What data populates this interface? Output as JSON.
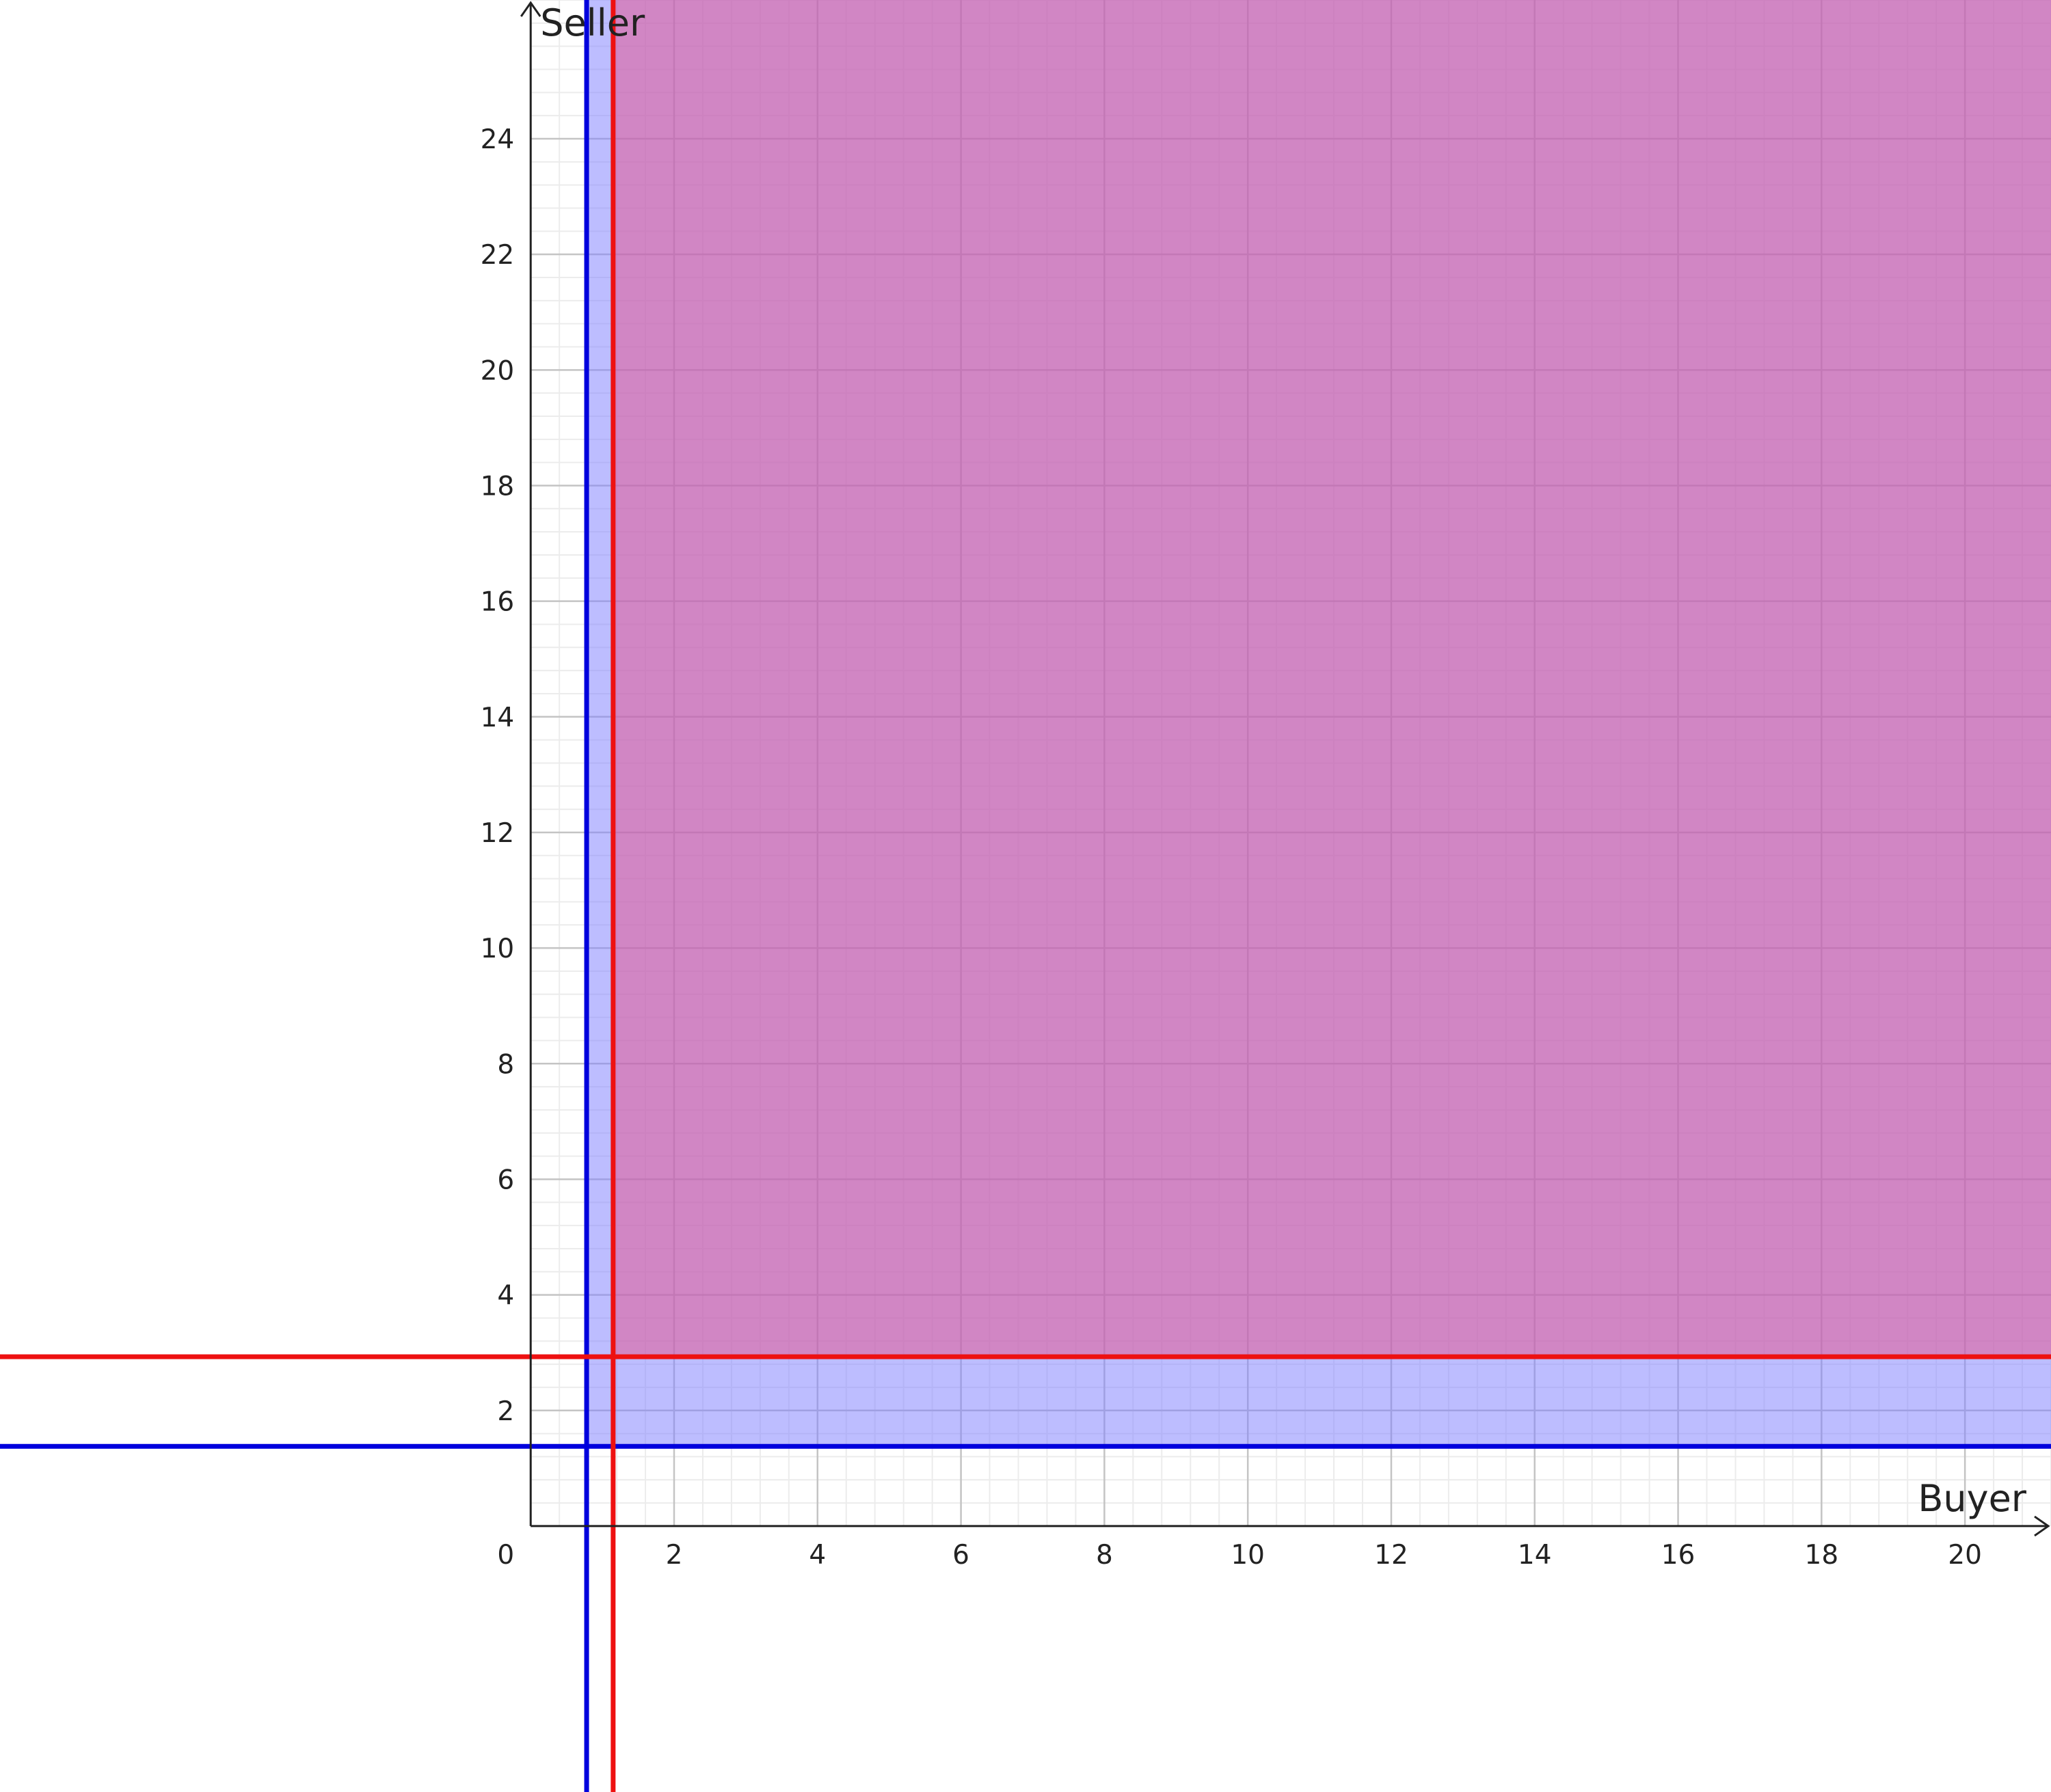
{
  "chart_data": {
    "type": "region",
    "xlabel": "Buyer",
    "ylabel": "Seller",
    "origin_label": "0",
    "xlim": [
      -7.4,
      21.2
    ],
    "ylim": [
      -4.6,
      26.4
    ],
    "x_ticks": [
      2,
      4,
      6,
      8,
      10,
      12,
      14,
      16,
      18,
      20
    ],
    "y_ticks": [
      2,
      4,
      6,
      8,
      10,
      12,
      14,
      16,
      18,
      20,
      22,
      24
    ],
    "grid": true,
    "minor_grid_step": 0.4,
    "series": [
      {
        "color": "#0000dd",
        "fill": "#7b7bff",
        "vertical_line_x": 0.78,
        "horizontal_line_y": 1.38
      },
      {
        "color": "#ee1111",
        "fill": "#e6508a",
        "vertical_line_x": 1.15,
        "horizontal_line_y": 2.93
      }
    ]
  }
}
